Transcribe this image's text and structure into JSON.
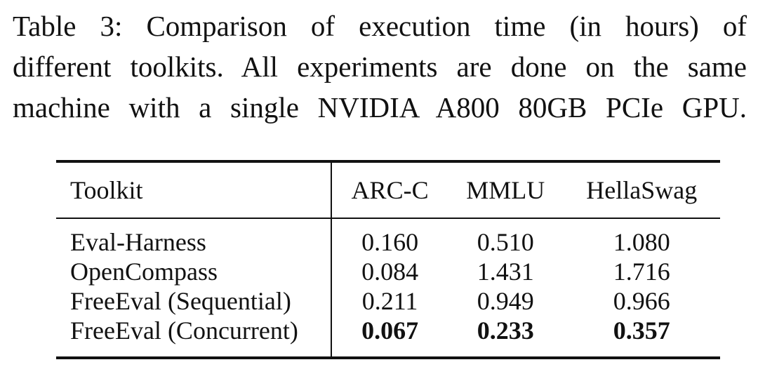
{
  "caption": {
    "line1": "Table 3: Comparison of execution time (in hours) of",
    "line2": "different toolkits. All experiments are done on the same",
    "line3": "machine with a single NVIDIA A800 80GB PCIe GPU."
  },
  "table": {
    "headers": [
      "Toolkit",
      "ARC-C",
      "MMLU",
      "HellaSwag"
    ],
    "rows": [
      {
        "toolkit": "Eval-Harness",
        "arc_c": "0.160",
        "mmlu": "0.510",
        "hellaswag": "1.080"
      },
      {
        "toolkit": "OpenCompass",
        "arc_c": "0.084",
        "mmlu": "1.431",
        "hellaswag": "1.716"
      },
      {
        "toolkit": "FreeEval (Sequential)",
        "arc_c": "0.211",
        "mmlu": "0.949",
        "hellaswag": "0.966"
      },
      {
        "toolkit": "FreeEval (Concurrent)",
        "arc_c": "0.067",
        "mmlu": "0.233",
        "hellaswag": "0.357"
      }
    ]
  }
}
